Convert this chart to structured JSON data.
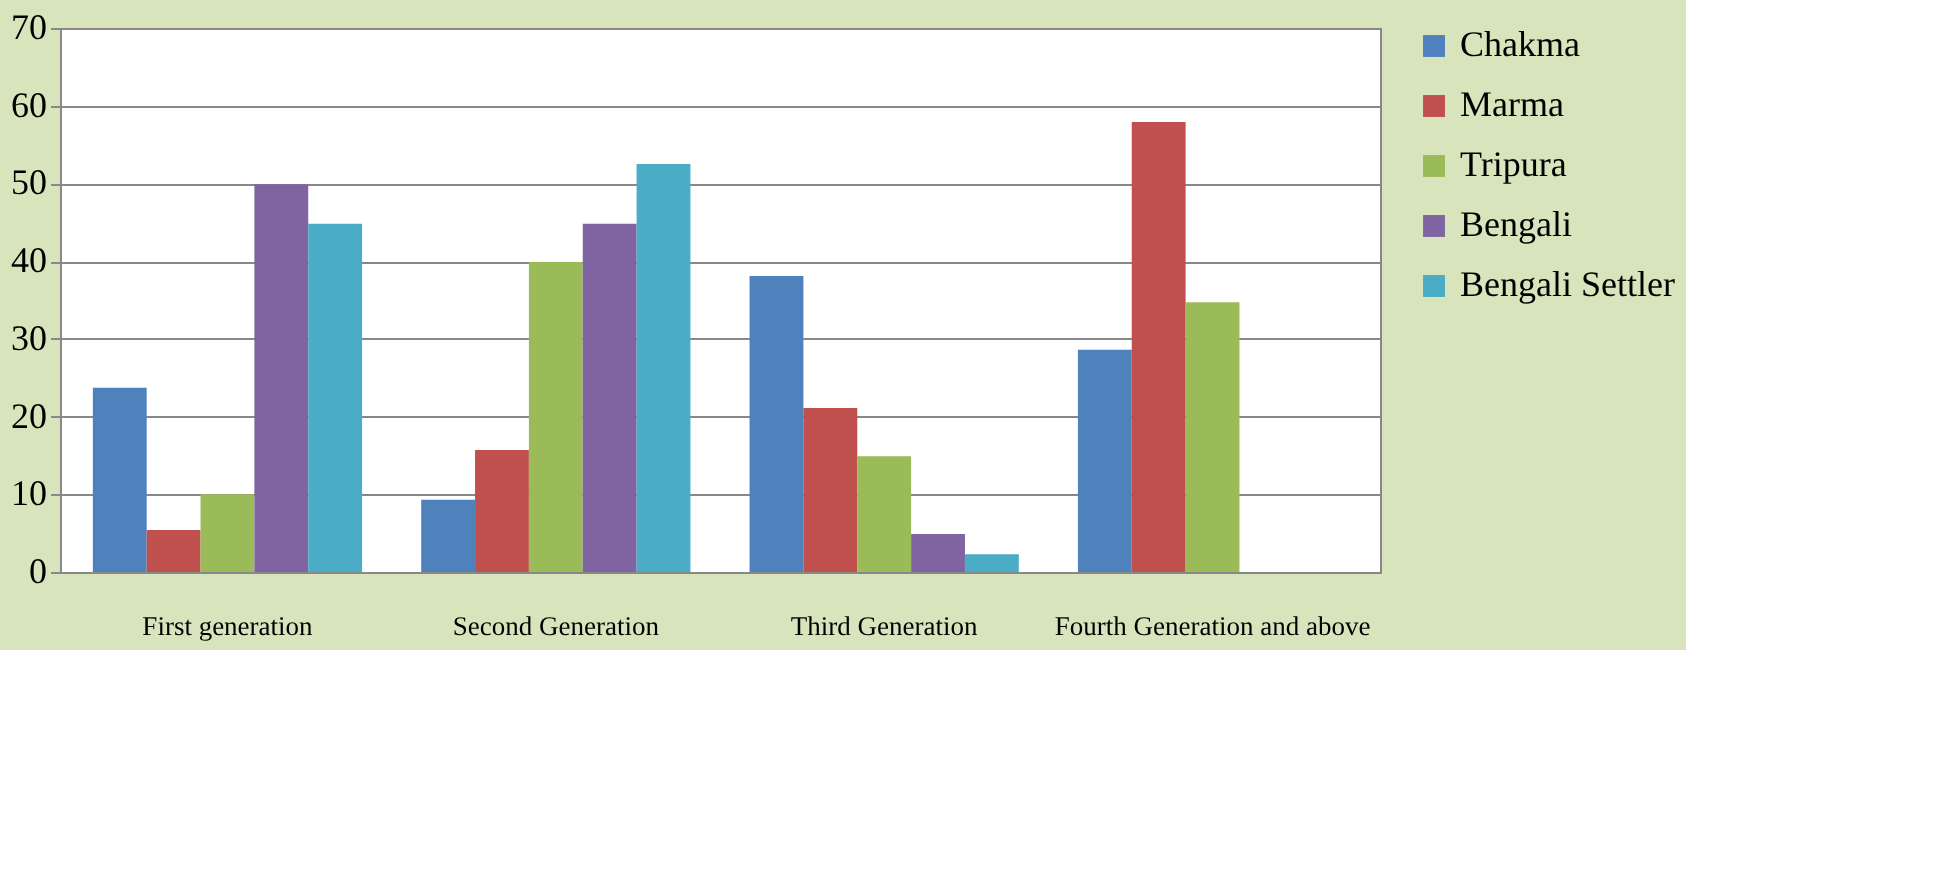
{
  "chart_data": {
    "type": "bar",
    "categories": [
      "First generation",
      "Second Generation",
      "Third Generation",
      "Fourth Generation and above"
    ],
    "series": [
      {
        "name": "Chakma",
        "color": "#4f81bd",
        "values": [
          23.7,
          9.3,
          38.1,
          28.6
        ]
      },
      {
        "name": "Marma",
        "color": "#c0504d",
        "values": [
          5.4,
          15.7,
          21.1,
          57.9
        ]
      },
      {
        "name": "Tripura",
        "color": "#9bbb59",
        "values": [
          10,
          39.9,
          14.9,
          34.7
        ]
      },
      {
        "name": "Bengali",
        "color": "#8064a2",
        "values": [
          49.9,
          44.8,
          4.9,
          null
        ]
      },
      {
        "name": "Bengali Settler",
        "color": "#4bacc6",
        "values": [
          44.8,
          52.5,
          2.3,
          null
        ]
      }
    ],
    "ylim": [
      0,
      70
    ],
    "yticks": [
      0,
      10,
      20,
      30,
      40,
      50,
      60,
      70
    ],
    "grid": "y",
    "legend": "right"
  }
}
